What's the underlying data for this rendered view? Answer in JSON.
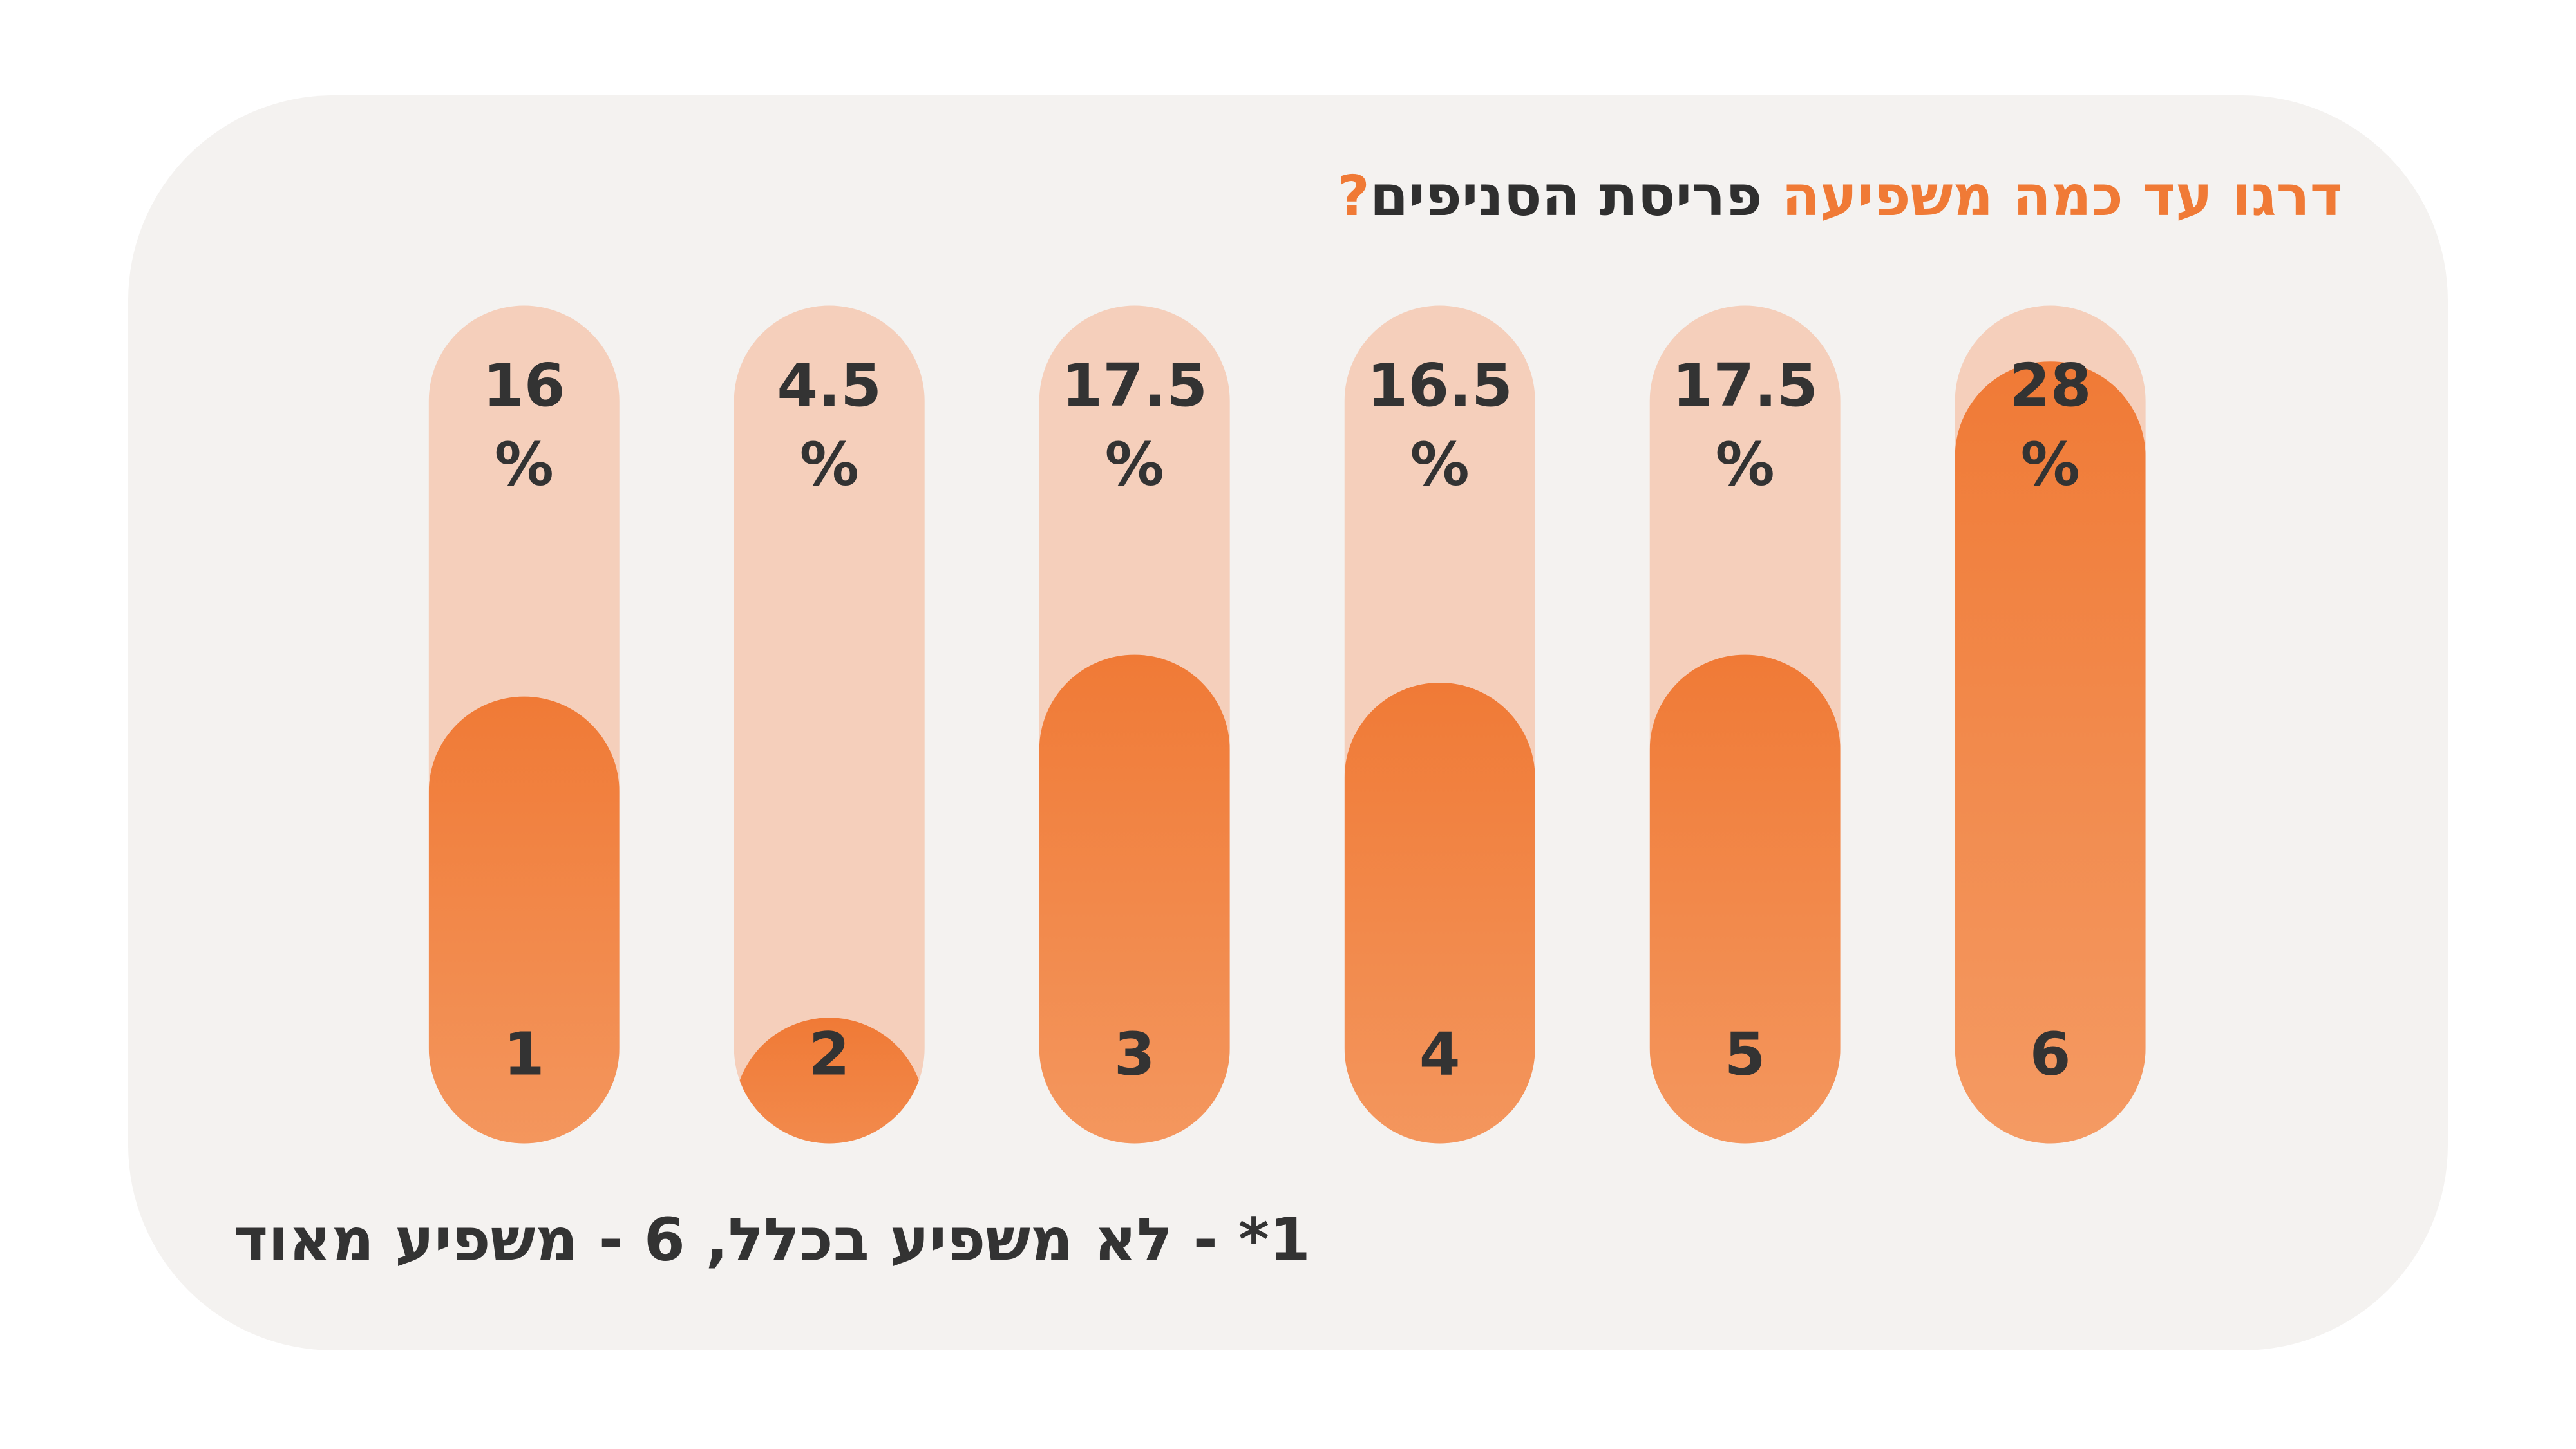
{
  "chart_data": {
    "type": "bar",
    "title_parts": [
      "דרגו עד כמה משפיעה",
      "פריסת הסניפים",
      "?"
    ],
    "categories": [
      "1",
      "2",
      "3",
      "4",
      "5",
      "6"
    ],
    "values": [
      16,
      4.5,
      17.5,
      16.5,
      17.5,
      28
    ],
    "value_labels": [
      "16\n%",
      "4.5\n%",
      "17.5\n%",
      "16.5\n%",
      "17.5\n%",
      "28\n%"
    ],
    "ylim": [
      0,
      30
    ],
    "color": "#f07a36",
    "note": "1* - לא משפיע בכלל, 6 - משפיע מאוד"
  }
}
